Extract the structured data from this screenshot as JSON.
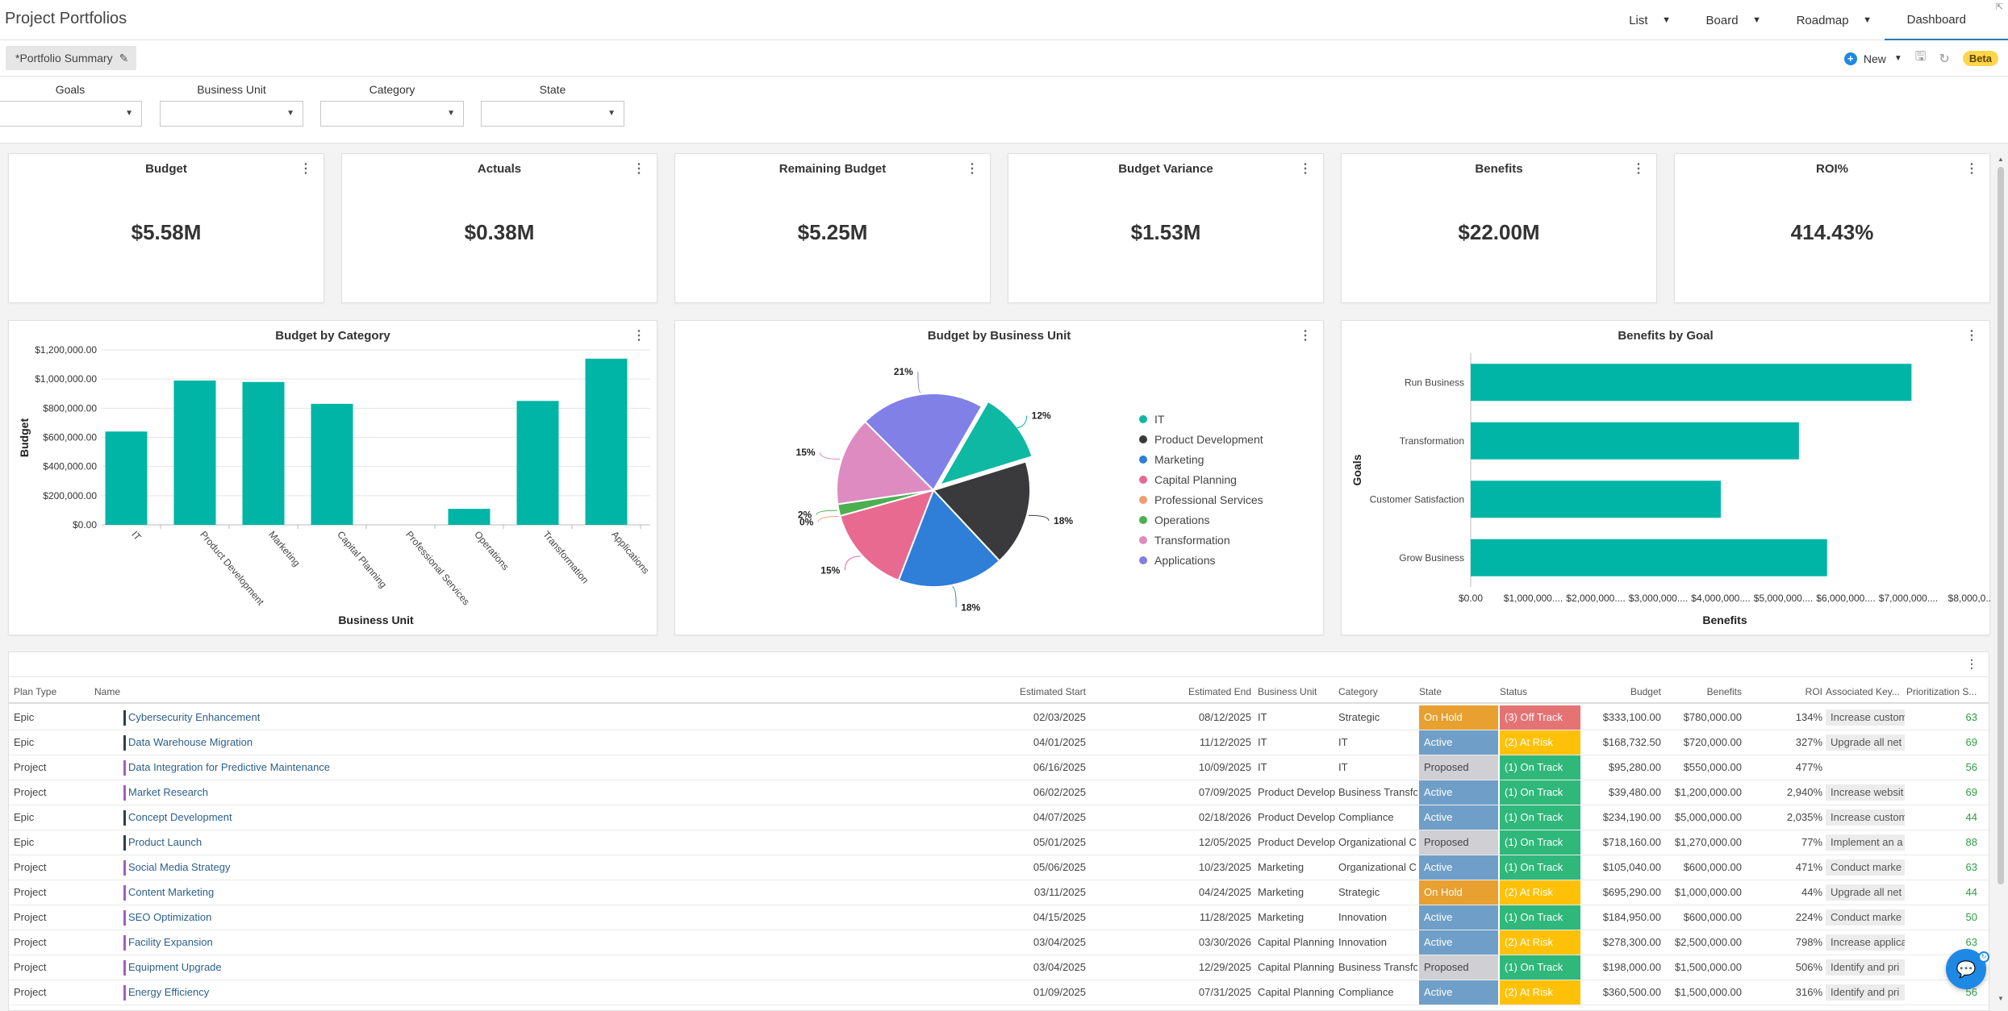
{
  "app": {
    "title": "Project Portfolios"
  },
  "views": [
    {
      "label": "List",
      "has_dropdown": true
    },
    {
      "label": "Board",
      "has_dropdown": true
    },
    {
      "label": "Roadmap",
      "has_dropdown": true
    },
    {
      "label": "Dashboard",
      "has_dropdown": false,
      "active": true
    }
  ],
  "subbar": {
    "tab_label": "*Portfolio Summary",
    "new_label": "New",
    "beta_label": "Beta"
  },
  "filters": [
    {
      "label": "Goals",
      "value": ""
    },
    {
      "label": "Business Unit",
      "value": ""
    },
    {
      "label": "Category",
      "value": ""
    },
    {
      "label": "State",
      "value": ""
    }
  ],
  "kpis": [
    {
      "title": "Budget",
      "value": "$5.58M"
    },
    {
      "title": "Actuals",
      "value": "$0.38M"
    },
    {
      "title": "Remaining Budget",
      "value": "$5.25M"
    },
    {
      "title": "Budget Variance",
      "value": "$1.53M"
    },
    {
      "title": "Benefits",
      "value": "$22.00M"
    },
    {
      "title": "ROI%",
      "value": "414.43%"
    }
  ],
  "chart_data": [
    {
      "type": "bar",
      "title": "Budget by Category",
      "xlabel": "Business Unit",
      "ylabel": "Budget",
      "categories": [
        "IT",
        "Product Development",
        "Marketing",
        "Capital Planning",
        "Professional Services",
        "Operations",
        "Transformation",
        "Applications"
      ],
      "values": [
        640000,
        990000,
        980000,
        830000,
        0,
        110000,
        850000,
        1140000
      ],
      "yticks": [
        "$0.00",
        "$200,000.00",
        "$400,000.00",
        "$600,000.00",
        "$800,000.00",
        "$1,000,000.00",
        "$1,200,000.00"
      ],
      "ylim": [
        0,
        1200000
      ],
      "color": "#00b5a5",
      "grid": true
    },
    {
      "type": "pie",
      "title": "Budget by Business Unit",
      "legend_position": "right",
      "slices": [
        {
          "label": "IT",
          "percent": 12,
          "color": "#0fb8a2",
          "pct_label": "12%"
        },
        {
          "label": "Product Development",
          "percent": 18,
          "color": "#3a3a3c",
          "pct_label": "18%"
        },
        {
          "label": "Marketing",
          "percent": 18,
          "color": "#2f7ed8",
          "pct_label": "18%"
        },
        {
          "label": "Capital Planning",
          "percent": 15,
          "color": "#e86a91",
          "pct_label": "15%"
        },
        {
          "label": "Professional Services",
          "percent": 0,
          "color": "#f29b6e",
          "pct_label": "0%"
        },
        {
          "label": "Operations",
          "percent": 2,
          "color": "#4caf50",
          "pct_label": "2%"
        },
        {
          "label": "Transformation",
          "percent": 15,
          "color": "#dd8bc0",
          "pct_label": "15%"
        },
        {
          "label": "Applications",
          "percent": 21,
          "color": "#8080e6",
          "pct_label": "21%"
        }
      ]
    },
    {
      "type": "bar",
      "orientation": "horizontal",
      "title": "Benefits by Goal",
      "xlabel": "Benefits",
      "ylabel": "Goals",
      "categories": [
        "Run Business",
        "Transformation",
        "Customer Satisfaction",
        "Grow Business"
      ],
      "values": [
        7050000,
        5250000,
        4000000,
        5700000
      ],
      "xticks": [
        "$0.00",
        "$1,000,000....",
        "$2,000,000....",
        "$3,000,000....",
        "$4,000,000....",
        "$5,000,000....",
        "$6,000,000....",
        "$7,000,000....",
        "$8,000,0..."
      ],
      "xlim": [
        0,
        8000000
      ],
      "color": "#00b5a5"
    }
  ],
  "table": {
    "columns": [
      "Plan Type",
      "Name",
      "Estimated Start",
      "Estimated End",
      "Business Unit",
      "Category",
      "State",
      "Status",
      "Budget",
      "Benefits",
      "ROI",
      "Associated Key...",
      "Prioritization S..."
    ],
    "rows": [
      {
        "type": "Epic",
        "name": "Cybersecurity Enhancement",
        "bar": "#2d3e50",
        "start": "02/03/2025",
        "end": "08/12/2025",
        "bu": "IT",
        "cat": "Strategic",
        "state": "On Hold",
        "state_color": "#e8a030",
        "status": "(3) Off Track",
        "status_color": "#e57373",
        "budget": "$333,100.00",
        "benefits": "$780,000.00",
        "roi": "134%",
        "key": "Increase custom",
        "score": "63"
      },
      {
        "type": "Epic",
        "name": "Data Warehouse Migration",
        "bar": "#2d3e50",
        "start": "04/01/2025",
        "end": "11/12/2025",
        "bu": "IT",
        "cat": "IT",
        "state": "Active",
        "state_color": "#6f9fc8",
        "status": "(2) At Risk",
        "status_color": "#ffc107",
        "budget": "$168,732.50",
        "benefits": "$720,000.00",
        "roi": "327%",
        "key": "Upgrade all net",
        "score": "69"
      },
      {
        "type": "Project",
        "name": "Data Integration for Predictive Maintenance",
        "bar": "#a060c0",
        "start": "06/16/2025",
        "end": "10/09/2025",
        "bu": "IT",
        "cat": "IT",
        "state": "Proposed",
        "state_color": "#cfcfd4",
        "status": "(1) On Track",
        "status_color": "#2fb87a",
        "budget": "$95,280.00",
        "benefits": "$550,000.00",
        "roi": "477%",
        "key": "",
        "score": "56"
      },
      {
        "type": "Project",
        "name": "Market Research",
        "bar": "#a060c0",
        "start": "06/02/2025",
        "end": "07/09/2025",
        "bu": "Product Develop",
        "cat": "Business Transfo",
        "state": "Active",
        "state_color": "#6f9fc8",
        "status": "(1) On Track",
        "status_color": "#2fb87a",
        "budget": "$39,480.00",
        "benefits": "$1,200,000.00",
        "roi": "2,940%",
        "key": "Increase websit",
        "score": "69"
      },
      {
        "type": "Epic",
        "name": "Concept Development",
        "bar": "#2d3e50",
        "start": "04/07/2025",
        "end": "02/18/2026",
        "bu": "Product Develop",
        "cat": "Compliance",
        "state": "Active",
        "state_color": "#6f9fc8",
        "status": "(1) On Track",
        "status_color": "#2fb87a",
        "budget": "$234,190.00",
        "benefits": "$5,000,000.00",
        "roi": "2,035%",
        "key": "Increase custom",
        "score": "44"
      },
      {
        "type": "Epic",
        "name": "Product Launch",
        "bar": "#2d3e50",
        "start": "05/01/2025",
        "end": "12/05/2025",
        "bu": "Product Develop",
        "cat": "Organizational C",
        "state": "Proposed",
        "state_color": "#cfcfd4",
        "status": "(1) On Track",
        "status_color": "#2fb87a",
        "budget": "$718,160.00",
        "benefits": "$1,270,000.00",
        "roi": "77%",
        "key": "Implement an a",
        "score": "88"
      },
      {
        "type": "Project",
        "name": "Social Media Strategy",
        "bar": "#a060c0",
        "start": "05/06/2025",
        "end": "10/23/2025",
        "bu": "Marketing",
        "cat": "Organizational C",
        "state": "Active",
        "state_color": "#6f9fc8",
        "status": "(1) On Track",
        "status_color": "#2fb87a",
        "budget": "$105,040.00",
        "benefits": "$600,000.00",
        "roi": "471%",
        "key": "Conduct marke",
        "score": "63"
      },
      {
        "type": "Project",
        "name": "Content Marketing",
        "bar": "#a060c0",
        "start": "03/11/2025",
        "end": "04/24/2025",
        "bu": "Marketing",
        "cat": "Strategic",
        "state": "On Hold",
        "state_color": "#e8a030",
        "status": "(2) At Risk",
        "status_color": "#ffc107",
        "budget": "$695,290.00",
        "benefits": "$1,000,000.00",
        "roi": "44%",
        "key": "Upgrade all net",
        "score": "44"
      },
      {
        "type": "Project",
        "name": "SEO Optimization",
        "bar": "#a060c0",
        "start": "04/15/2025",
        "end": "11/28/2025",
        "bu": "Marketing",
        "cat": "Innovation",
        "state": "Active",
        "state_color": "#6f9fc8",
        "status": "(1) On Track",
        "status_color": "#2fb87a",
        "budget": "$184,950.00",
        "benefits": "$600,000.00",
        "roi": "224%",
        "key": "Conduct marke",
        "score": "50"
      },
      {
        "type": "Project",
        "name": "Facility Expansion",
        "bar": "#a060c0",
        "start": "03/04/2025",
        "end": "03/30/2026",
        "bu": "Capital Planning",
        "cat": "Innovation",
        "state": "Active",
        "state_color": "#6f9fc8",
        "status": "(2) At Risk",
        "status_color": "#ffc107",
        "budget": "$278,300.00",
        "benefits": "$2,500,000.00",
        "roi": "798%",
        "key": "Increase applica",
        "score": "63"
      },
      {
        "type": "Project",
        "name": "Equipment Upgrade",
        "bar": "#a060c0",
        "start": "03/04/2025",
        "end": "12/29/2025",
        "bu": "Capital Planning",
        "cat": "Business Transfo",
        "state": "Proposed",
        "state_color": "#cfcfd4",
        "status": "(1) On Track",
        "status_color": "#2fb87a",
        "budget": "$198,000.00",
        "benefits": "$1,500,000.00",
        "roi": "506%",
        "key": "Identify and pri",
        "score": "69"
      },
      {
        "type": "Project",
        "name": "Energy Efficiency",
        "bar": "#a060c0",
        "start": "01/09/2025",
        "end": "07/31/2025",
        "bu": "Capital Planning",
        "cat": "Compliance",
        "state": "Active",
        "state_color": "#6f9fc8",
        "status": "(2) At Risk",
        "status_color": "#ffc107",
        "budget": "$360,500.00",
        "benefits": "$1,500,000.00",
        "roi": "316%",
        "key": "Identify and pri",
        "score": "56"
      }
    ]
  }
}
